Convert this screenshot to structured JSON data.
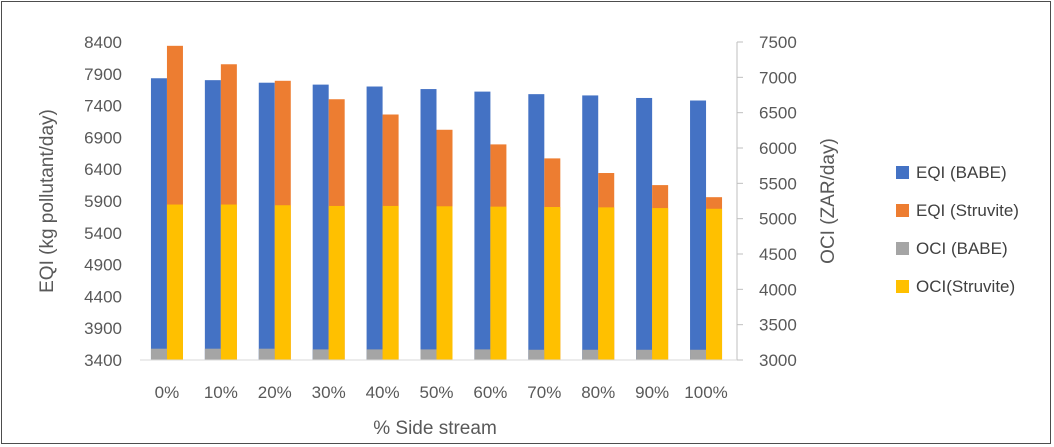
{
  "chart_data": {
    "type": "bar",
    "categories": [
      "0%",
      "10%",
      "20%",
      "30%",
      "40%",
      "50%",
      "60%",
      "70%",
      "80%",
      "90%",
      "100%"
    ],
    "xlabel": "% Side stream",
    "ylabel_left": "EQI (kg pollutant/day)",
    "ylabel_right": "OCI (ZAR/day)",
    "ylim_left": [
      3400,
      8400
    ],
    "ylim_right": [
      3000,
      7500
    ],
    "yticks_left": [
      "3400",
      "3900",
      "4400",
      "4900",
      "5400",
      "5900",
      "6400",
      "6900",
      "7400",
      "7900",
      "8400"
    ],
    "yticks_right": [
      "3000",
      "3500",
      "4000",
      "4500",
      "5000",
      "5500",
      "6000",
      "6500",
      "7000",
      "7500"
    ],
    "legend_position": "right",
    "series": [
      {
        "name": "EQI (BABE)",
        "axis": "left",
        "color": "#4472C4",
        "values": [
          7830,
          7800,
          7760,
          7730,
          7700,
          7660,
          7620,
          7580,
          7560,
          7520,
          7480
        ]
      },
      {
        "name": "EQI (Struvite)",
        "axis": "left",
        "color": "#ED7D31",
        "values": [
          8340,
          8050,
          7790,
          7500,
          7260,
          7020,
          6790,
          6570,
          6340,
          6150,
          5960
        ]
      },
      {
        "name": "OCI (BABE)",
        "axis": "right",
        "color": "#A5A5A5",
        "values": [
          3160,
          3160,
          3160,
          3150,
          3150,
          3150,
          3150,
          3145,
          3145,
          3145,
          3145
        ]
      },
      {
        "name": "OCI(Struvite)",
        "axis": "right",
        "color": "#FFC000",
        "values": [
          5200,
          5200,
          5190,
          5180,
          5180,
          5175,
          5170,
          5165,
          5160,
          5150,
          5140
        ]
      }
    ]
  }
}
